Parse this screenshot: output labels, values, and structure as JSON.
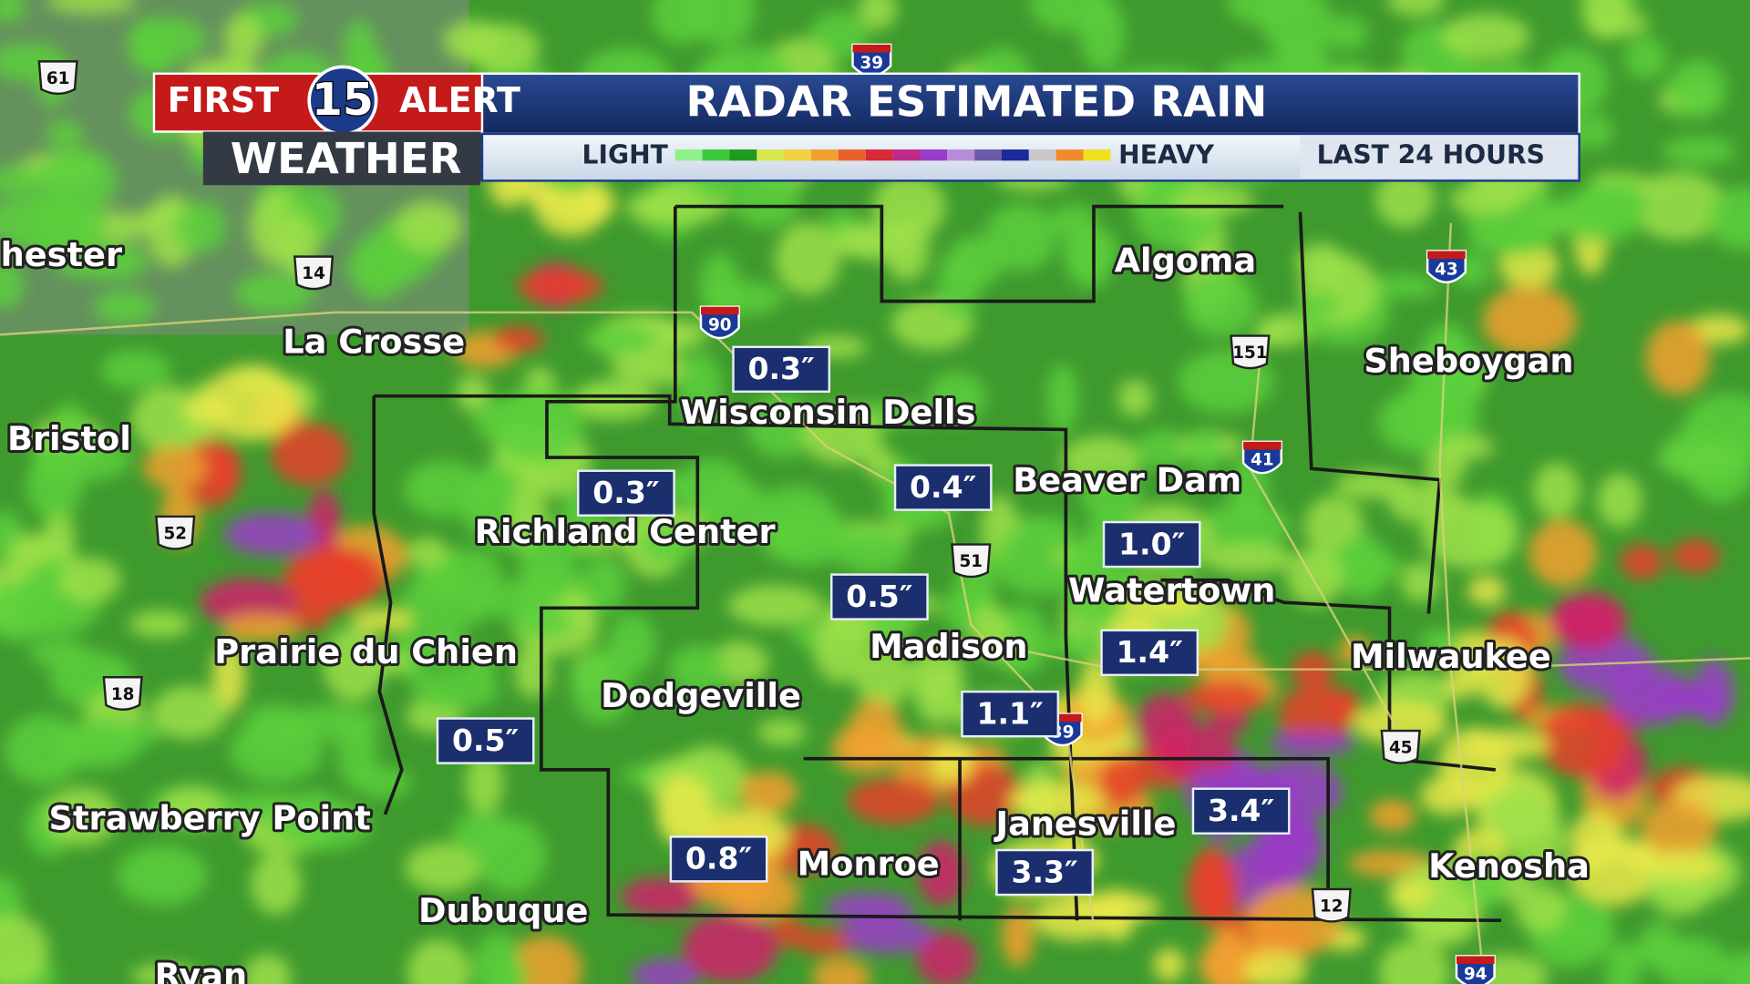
{
  "header": {
    "logo_first": "FIRST",
    "logo_number": "15",
    "logo_alert": "ALERT",
    "logo_weather": "WEATHER",
    "title": "RADAR ESTIMATED RAIN",
    "period": "LAST 24 HOURS"
  },
  "legend": {
    "low_label": "LIGHT",
    "high_label": "HEAVY",
    "colors": [
      "#8ef08a",
      "#3cc83a",
      "#1e9a1e",
      "#d6e84a",
      "#f2d040",
      "#f2a030",
      "#e8602a",
      "#d8283a",
      "#c02a8a",
      "#9a3cc8",
      "#b48cd8",
      "#6a5aa8",
      "#1a2a9a",
      "#c8c8c8",
      "#f28a2a",
      "#f0e020"
    ]
  },
  "cities": [
    "hester",
    "La Crosse",
    "Bristol",
    "Algoma",
    "Sheboygan",
    "Wisconsin Dells",
    "Beaver Dam",
    "Richland Center",
    "Watertown",
    "Madison",
    "Milwaukee",
    "Prairie du Chien",
    "Dodgeville",
    "Strawberry Point",
    "Janesville",
    "Monroe",
    "Kenosha",
    "Dubuque",
    "Ryan"
  ],
  "rain_totals": [
    "0.3″",
    "0.3″",
    "0.4″",
    "1.0″",
    "0.5″",
    "1.4″",
    "1.1″",
    "0.5″",
    "3.4″",
    "0.8″",
    "3.3″"
  ],
  "interstates": [
    "39",
    "90",
    "43",
    "41",
    "39",
    "94"
  ],
  "us_routes": [
    "61",
    "14",
    "52",
    "151",
    "51",
    "18",
    "45",
    "12"
  ]
}
